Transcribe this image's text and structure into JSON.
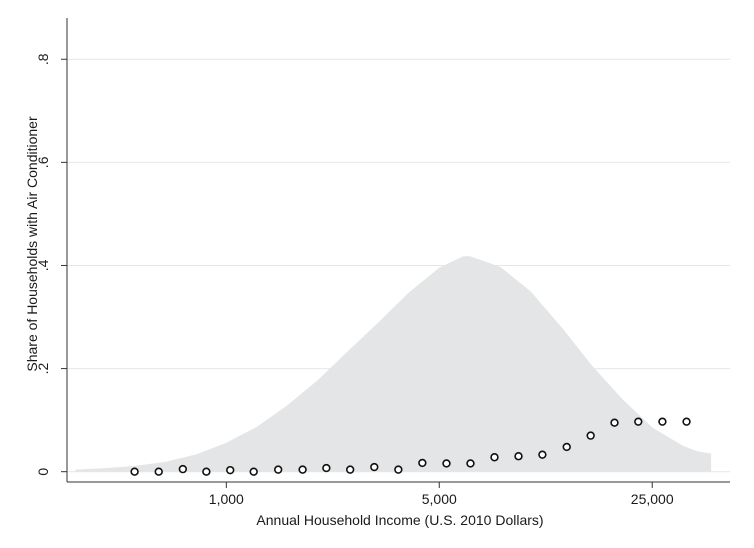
{
  "chart_data": {
    "type": "scatter",
    "title": "",
    "xlabel": "Annual Household Income (U.S. 2010 Dollars)",
    "ylabel": "Share of Households with Air Conditioner",
    "x_scale": "log",
    "xlim": [
      300,
      45000
    ],
    "ylim": [
      -0.02,
      0.88
    ],
    "x_ticks": [
      {
        "value": 1000,
        "label": "1,000"
      },
      {
        "value": 5000,
        "label": "5,000"
      },
      {
        "value": 25000,
        "label": "25,000"
      }
    ],
    "y_ticks": [
      {
        "value": 0,
        "label": "0"
      },
      {
        "value": 0.2,
        "label": ".2"
      },
      {
        "value": 0.4,
        "label": ".4"
      },
      {
        "value": 0.6,
        "label": ".6"
      },
      {
        "value": 0.8,
        "label": ".8"
      }
    ],
    "grid": true,
    "legend": "none",
    "colors": {
      "density_fill": "#e3e5e6",
      "grid": "#e4e7ea",
      "axis": "#333333",
      "marker_stroke": "#111111",
      "marker_fill": "#ffffff"
    },
    "series": [
      {
        "type": "scatter",
        "x": [
          500,
          600,
          720,
          860,
          1030,
          1230,
          1480,
          1780,
          2130,
          2550,
          3060,
          3670,
          4400,
          5280,
          6330,
          7590,
          9100,
          10900,
          13100,
          15700,
          18800,
          22500,
          27000,
          32400
        ],
        "y": [
          0.0,
          0.0,
          0.005,
          0.0,
          0.003,
          0.0,
          0.004,
          0.004,
          0.007,
          0.004,
          0.009,
          0.004,
          0.017,
          0.016,
          0.016,
          0.028,
          0.03,
          0.033,
          0.048,
          0.07,
          0.095,
          0.097,
          0.097,
          0.097
        ]
      },
      {
        "type": "area",
        "x": [
          320,
          400,
          500,
          630,
          800,
          1000,
          1260,
          1580,
          2000,
          2510,
          3160,
          3980,
          5010,
          6000,
          6310,
          7940,
          10000,
          12600,
          15800,
          20000,
          25100,
          31600,
          35000,
          39000
        ],
        "y": [
          0.004,
          0.007,
          0.011,
          0.019,
          0.034,
          0.056,
          0.087,
          0.128,
          0.178,
          0.234,
          0.29,
          0.348,
          0.396,
          0.418,
          0.418,
          0.397,
          0.349,
          0.28,
          0.207,
          0.14,
          0.085,
          0.05,
          0.04,
          0.035
        ]
      }
    ]
  }
}
